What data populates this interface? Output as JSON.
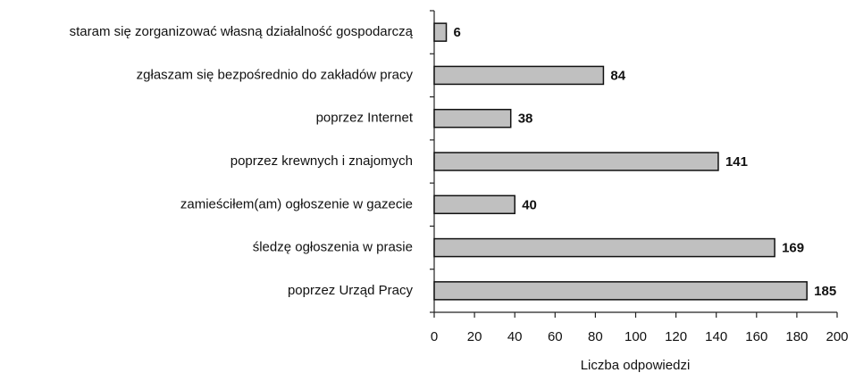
{
  "chart_data": {
    "type": "bar",
    "orientation": "horizontal",
    "x_label": "Liczba odpowiedzi",
    "categories": [
      "staram się zorganizować własną działalność gospodarczą",
      "zgłaszam się bezpośrednio do zakładów pracy",
      "poprzez Internet",
      "poprzez krewnych i znajomych",
      "zamieściłem(am) ogłoszenie w gazecie",
      "śledzę ogłoszenia w prasie",
      "poprzez Urząd Pracy"
    ],
    "values": [
      6,
      84,
      38,
      141,
      40,
      169,
      185
    ],
    "color": "#c0c0c0",
    "xlim": [
      0,
      200
    ],
    "xticks": [
      0,
      20,
      40,
      60,
      80,
      100,
      120,
      140,
      160,
      180,
      200
    ],
    "grid": false
  }
}
